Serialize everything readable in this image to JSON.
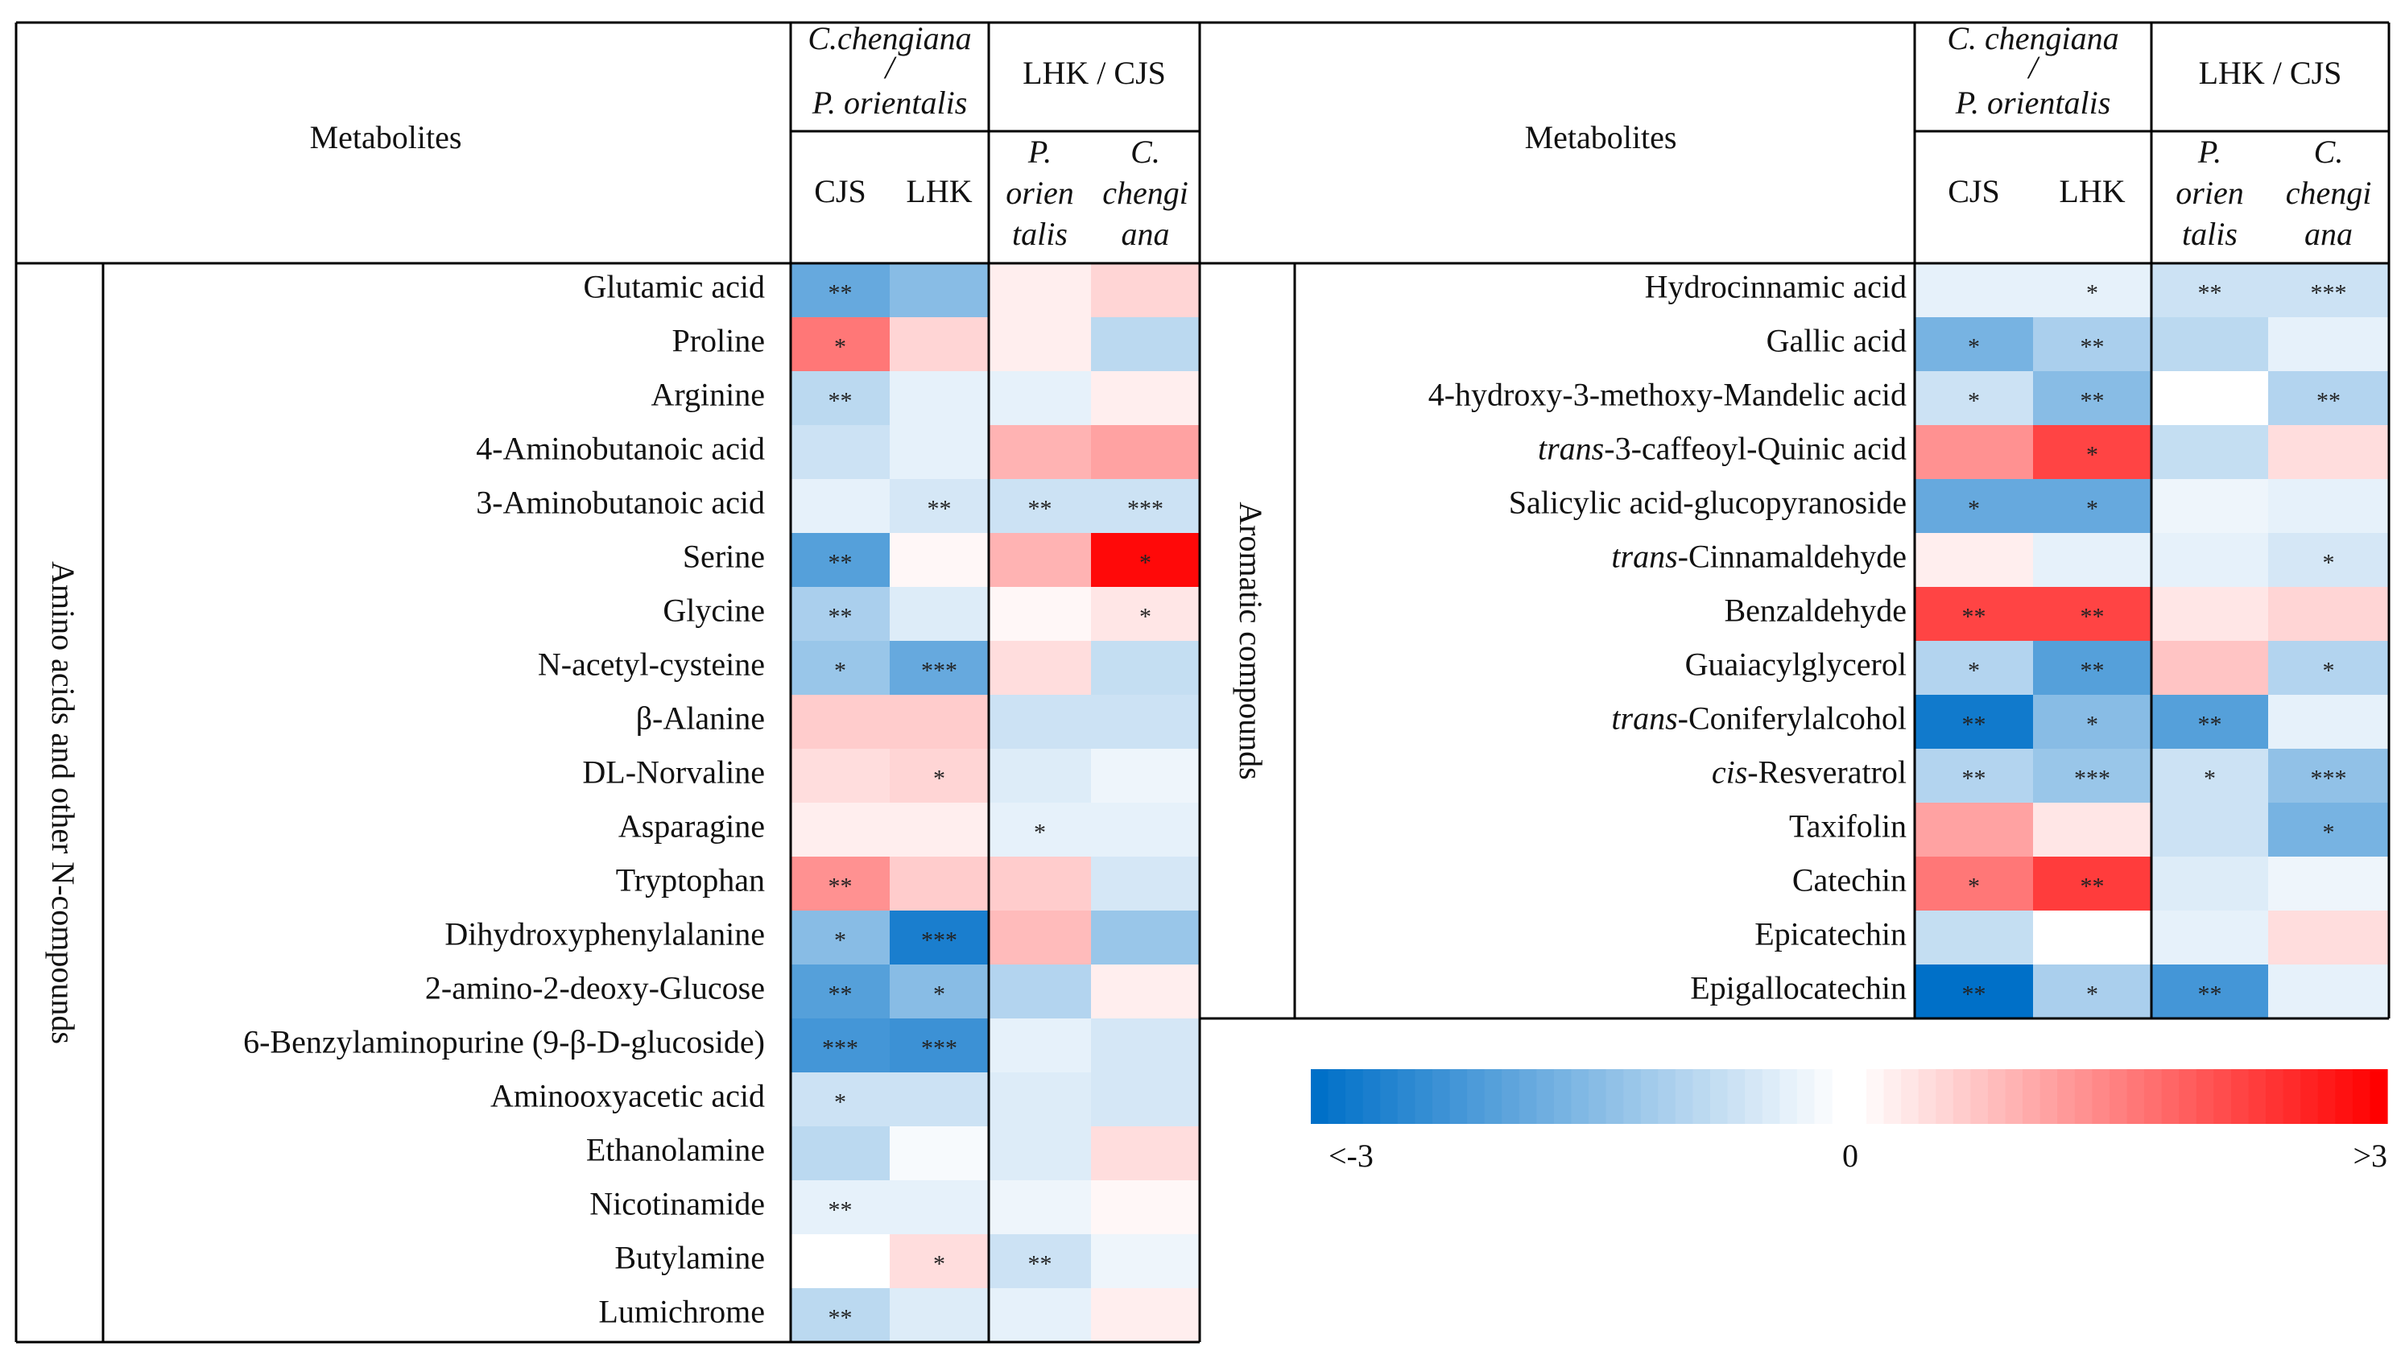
{
  "chart_data": {
    "type": "heatmap",
    "value_range": [
      -3,
      3
    ],
    "color_low": "#0070c8",
    "color_mid": "#ffffff",
    "color_high": "#ff0000",
    "legend": {
      "low_label": "<-3",
      "mid_label": "0",
      "high_label": ">3",
      "steps": 30
    },
    "headers": {
      "metabolites": "Metabolites",
      "group1_line1": "C.chengiana",
      "group1_line2": "/",
      "group1_line3": "P. orientalis",
      "group1_line1_right": "C. chengiana",
      "group2": "LHK / CJS",
      "col_cjs": "CJS",
      "col_lhk": "LHK",
      "col_po_1": "P.",
      "col_po_2": "orien",
      "col_po_3": "talis",
      "col_cc_1": "C.",
      "col_cc_2": "chengi",
      "col_cc_3": "ana"
    },
    "tables": [
      {
        "category": "Amino acids and other N-compounds",
        "rows": [
          {
            "name": "Glutamic acid",
            "values": [
              -1.8,
              -1.4,
              0.2,
              0.5
            ],
            "stars": [
              "**",
              "",
              "",
              ""
            ]
          },
          {
            "name": "Proline",
            "values": [
              1.6,
              0.5,
              0.2,
              -0.8
            ],
            "stars": [
              "*",
              "",
              "",
              ""
            ]
          },
          {
            "name": "Arginine",
            "values": [
              -0.8,
              -0.3,
              -0.3,
              0.2
            ],
            "stars": [
              "**",
              "",
              "",
              ""
            ]
          },
          {
            "name": "4-Aminobutanoic acid",
            "values": [
              -0.6,
              -0.3,
              0.9,
              1.1
            ],
            "stars": [
              "",
              "",
              "",
              ""
            ]
          },
          {
            "name": "3-Aminobutanoic acid",
            "values": [
              -0.3,
              -0.5,
              -0.6,
              -0.6
            ],
            "stars": [
              "",
              "**",
              "**",
              "***"
            ]
          },
          {
            "name": "Serine",
            "values": [
              -2.0,
              0.1,
              0.9,
              2.9
            ],
            "stars": [
              "**",
              "",
              "",
              "*"
            ]
          },
          {
            "name": "Glycine",
            "values": [
              -1.0,
              -0.4,
              0.1,
              0.3
            ],
            "stars": [
              "**",
              "",
              "",
              "*"
            ]
          },
          {
            "name": "N-acetyl-cysteine",
            "values": [
              -1.2,
              -1.8,
              0.4,
              -0.7
            ],
            "stars": [
              "*",
              "***",
              "",
              ""
            ]
          },
          {
            "name": "β-Alanine",
            "values": [
              0.6,
              0.6,
              -0.6,
              -0.6
            ],
            "stars": [
              "",
              "",
              "",
              ""
            ]
          },
          {
            "name": "DL-Norvaline",
            "values": [
              0.4,
              0.5,
              -0.4,
              -0.2
            ],
            "stars": [
              "",
              "*",
              "",
              ""
            ]
          },
          {
            "name": "Asparagine",
            "values": [
              0.2,
              0.2,
              -0.3,
              -0.3
            ],
            "stars": [
              "",
              "",
              "*",
              ""
            ]
          },
          {
            "name": "Tryptophan",
            "values": [
              1.3,
              0.6,
              0.6,
              -0.5
            ],
            "stars": [
              "**",
              "",
              "",
              ""
            ]
          },
          {
            "name": "Dihydroxyphenylalanine",
            "values": [
              -1.4,
              -2.7,
              0.8,
              -1.2
            ],
            "stars": [
              "*",
              "***",
              "",
              ""
            ]
          },
          {
            "name": "2-amino-2-deoxy-Glucose",
            "values": [
              -2.0,
              -1.4,
              -0.9,
              0.2
            ],
            "stars": [
              "**",
              "*",
              "",
              ""
            ]
          },
          {
            "name": "6-Benzylaminopurine (9-β-D-glucoside)",
            "values": [
              -2.2,
              -2.3,
              -0.3,
              -0.5
            ],
            "stars": [
              "***",
              "***",
              "",
              ""
            ]
          },
          {
            "name": "Aminooxyacetic acid",
            "values": [
              -0.6,
              -0.6,
              -0.4,
              -0.5
            ],
            "stars": [
              "*",
              "",
              "",
              ""
            ]
          },
          {
            "name": "Ethanolamine",
            "values": [
              -0.8,
              -0.1,
              -0.4,
              0.4
            ],
            "stars": [
              "",
              "",
              "",
              ""
            ]
          },
          {
            "name": "Nicotinamide",
            "values": [
              -0.3,
              -0.3,
              -0.2,
              0.1
            ],
            "stars": [
              "**",
              "",
              "",
              ""
            ]
          },
          {
            "name": "Butylamine",
            "values": [
              0.0,
              0.4,
              -0.6,
              -0.2
            ],
            "stars": [
              "",
              "*",
              "**",
              ""
            ]
          },
          {
            "name": "Lumichrome",
            "values": [
              -0.8,
              -0.4,
              -0.3,
              0.2
            ],
            "stars": [
              "**",
              "",
              "",
              ""
            ]
          }
        ]
      },
      {
        "category": "Aromatic compounds",
        "rows": [
          {
            "name": "Hydrocinnamic acid",
            "prefix": "",
            "italic": "",
            "suffix": "",
            "values": [
              -0.3,
              -0.3,
              -0.6,
              -0.6
            ],
            "stars": [
              "",
              "*",
              "**",
              "***"
            ]
          },
          {
            "name": "Gallic acid",
            "prefix": "",
            "italic": "",
            "suffix": "",
            "values": [
              -1.6,
              -1.0,
              -0.8,
              -0.3
            ],
            "stars": [
              "*",
              "**",
              "",
              ""
            ]
          },
          {
            "name": "4-hydroxy-3-methoxy-Mandelic acid",
            "prefix": "",
            "italic": "",
            "suffix": "",
            "values": [
              -0.6,
              -1.4,
              0.0,
              -0.9
            ],
            "stars": [
              "*",
              "**",
              "",
              "**"
            ]
          },
          {
            "name": "3-caffeoyl-Quinic acid",
            "prefix": "",
            "italic": "trans",
            "suffix": "-3-caffeoyl-Quinic acid",
            "values": [
              1.3,
              2.2,
              -0.7,
              0.4
            ],
            "stars": [
              "",
              "*",
              "",
              ""
            ]
          },
          {
            "name": "Salicylic acid-glucopyranoside",
            "prefix": "",
            "italic": "",
            "suffix": "",
            "values": [
              -1.8,
              -1.8,
              -0.2,
              -0.3
            ],
            "stars": [
              "*",
              "*",
              "",
              ""
            ]
          },
          {
            "name": "Cinnamaldehyde",
            "prefix": "",
            "italic": "trans",
            "suffix": "-Cinnamaldehyde",
            "values": [
              0.2,
              -0.3,
              -0.3,
              -0.5
            ],
            "stars": [
              "",
              "",
              "",
              "*"
            ]
          },
          {
            "name": "Benzaldehyde",
            "prefix": "",
            "italic": "",
            "suffix": "",
            "values": [
              2.2,
              2.2,
              0.3,
              0.5
            ],
            "stars": [
              "**",
              "**",
              "",
              ""
            ]
          },
          {
            "name": "Guaiacylglycerol",
            "prefix": "",
            "italic": "",
            "suffix": "",
            "values": [
              -0.9,
              -2.0,
              0.7,
              -0.9
            ],
            "stars": [
              "*",
              "**",
              "",
              "*"
            ]
          },
          {
            "name": "Coniferylalcohol",
            "prefix": "",
            "italic": "trans",
            "suffix": "-Coniferylalcohol",
            "values": [
              -2.8,
              -1.4,
              -2.0,
              -0.3
            ],
            "stars": [
              "**",
              "*",
              "**",
              ""
            ]
          },
          {
            "name": "Resveratrol",
            "prefix": "",
            "italic": "cis",
            "suffix": "-Resveratrol",
            "values": [
              -0.9,
              -1.2,
              -0.6,
              -1.3
            ],
            "stars": [
              "**",
              "***",
              "*",
              "***"
            ]
          },
          {
            "name": "Taxifolin",
            "prefix": "",
            "italic": "",
            "suffix": "",
            "values": [
              1.1,
              0.3,
              -0.6,
              -1.6
            ],
            "stars": [
              "",
              "",
              "",
              "*"
            ]
          },
          {
            "name": "Catechin",
            "prefix": "",
            "italic": "",
            "suffix": "",
            "values": [
              1.6,
              2.3,
              -0.4,
              -0.2
            ],
            "stars": [
              "*",
              "**",
              "",
              ""
            ]
          },
          {
            "name": "Epicatechin",
            "prefix": "",
            "italic": "",
            "suffix": "",
            "values": [
              -0.7,
              0.0,
              -0.3,
              0.4
            ],
            "stars": [
              "",
              "",
              "",
              ""
            ]
          },
          {
            "name": "Epigallocatechin",
            "prefix": "",
            "italic": "",
            "suffix": "",
            "values": [
              -3.0,
              -1.0,
              -2.2,
              -0.3
            ],
            "stars": [
              "**",
              "*",
              "**",
              ""
            ]
          }
        ]
      }
    ]
  }
}
